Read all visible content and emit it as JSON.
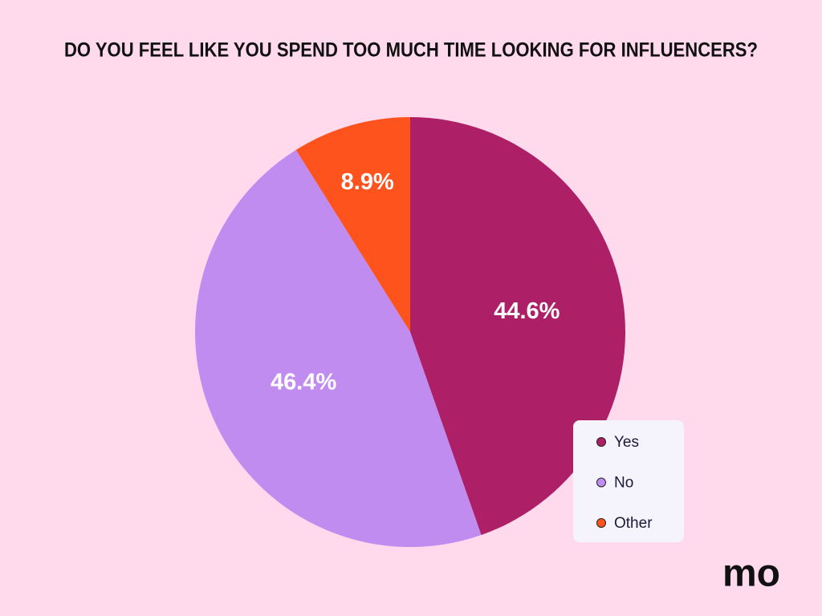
{
  "chart_data": {
    "type": "pie",
    "title": "DO YOU FEEL LIKE YOU SPEND TOO MUCH TIME LOOKING FOR INFLUENCERS?",
    "categories": [
      "Yes",
      "No",
      "Other"
    ],
    "values": [
      44.6,
      46.4,
      8.9
    ],
    "value_labels": [
      "44.6%",
      "46.4%",
      "8.9%"
    ],
    "colors": [
      "#ad1f66",
      "#c18cf0",
      "#ff531e"
    ],
    "legend": "lower right"
  },
  "logo": "mo"
}
